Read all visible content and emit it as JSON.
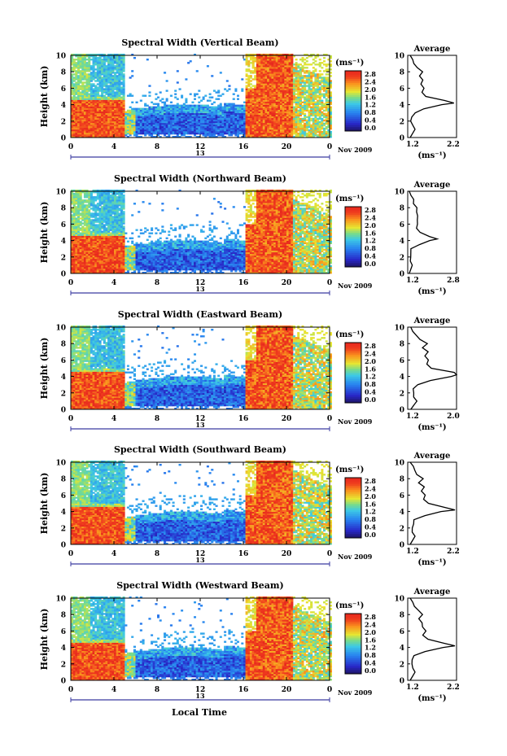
{
  "chart_data": {
    "type": "heatmap",
    "shared": {
      "x_ticks": [
        "0",
        "4",
        "8",
        "12",
        "16",
        "20",
        "0"
      ],
      "x_range_hours": [
        0,
        24
      ],
      "y_ticks": [
        "0",
        "2",
        "4",
        "6",
        "8",
        "10"
      ],
      "y_range_km": [
        0,
        10
      ],
      "ylabel": "Height (km)",
      "date_label": "13",
      "month_label": "Nov 2009",
      "xlabel": "Local Time",
      "colorbar_unit": "(ms⁻¹)",
      "colorbar_ticks": [
        "0.0",
        "0.4",
        "0.8",
        "1.2",
        "1.6",
        "2.0",
        "2.4",
        "2.8"
      ],
      "colorbar_range": [
        0,
        3.0
      ],
      "avg_title": "Average",
      "avg_unit": "(ms⁻¹)",
      "avg_y_ticks": [
        "0",
        "2",
        "4",
        "6",
        "8",
        "10"
      ]
    },
    "panels": [
      {
        "title": "Spectral Width (Vertical Beam)",
        "avg_xticks": [
          "1.2",
          "2.2"
        ],
        "avg_xrange": [
          1.2,
          2.2
        ]
      },
      {
        "title": "Spectral Width (Northward Beam)",
        "avg_xticks": [
          "1.2",
          "2.8"
        ],
        "avg_xrange": [
          1.2,
          2.8
        ]
      },
      {
        "title": "Spectral Width (Eastward Beam)",
        "avg_xticks": [
          "1.2",
          "2.0"
        ],
        "avg_xrange": [
          1.2,
          2.0
        ]
      },
      {
        "title": "Spectral Width (Southward Beam)",
        "avg_xticks": [
          "1.2",
          "2.2"
        ],
        "avg_xrange": [
          1.2,
          2.2
        ]
      },
      {
        "title": "Spectral Width (Westward Beam)",
        "avg_xticks": [
          "1.2",
          "2.2"
        ],
        "avg_xrange": [
          1.2,
          2.2
        ]
      }
    ],
    "regions_description_hours_km_values": [
      {
        "x": [
          0,
          1.5
        ],
        "y": [
          5,
          10
        ],
        "v": 1.5
      },
      {
        "x": [
          1.5,
          5
        ],
        "y": [
          5,
          10
        ],
        "v": 1.2
      },
      {
        "x": [
          0,
          5
        ],
        "y": [
          0,
          4.5
        ],
        "v": 2.5
      },
      {
        "x": [
          5,
          16
        ],
        "y": [
          0,
          3
        ],
        "v": 0.7
      },
      {
        "x": [
          16,
          21
        ],
        "y": [
          0,
          10
        ],
        "v": 2.8
      },
      {
        "x": [
          21,
          24
        ],
        "y": [
          0,
          8
        ],
        "v": 1.8
      }
    ],
    "average_profile": {
      "height_km": [
        0,
        0.5,
        1,
        1.5,
        2,
        2.5,
        3,
        3.5,
        4,
        4.2,
        4.5,
        5,
        5.5,
        6,
        6.5,
        7,
        7.5,
        8,
        8.5,
        9,
        9.5,
        10
      ],
      "value_ms": [
        1.25,
        1.3,
        1.35,
        1.3,
        1.28,
        1.3,
        1.35,
        1.55,
        1.9,
        2.15,
        1.95,
        1.6,
        1.5,
        1.55,
        1.48,
        1.52,
        1.45,
        1.5,
        1.4,
        1.35,
        1.3,
        1.25
      ]
    }
  }
}
